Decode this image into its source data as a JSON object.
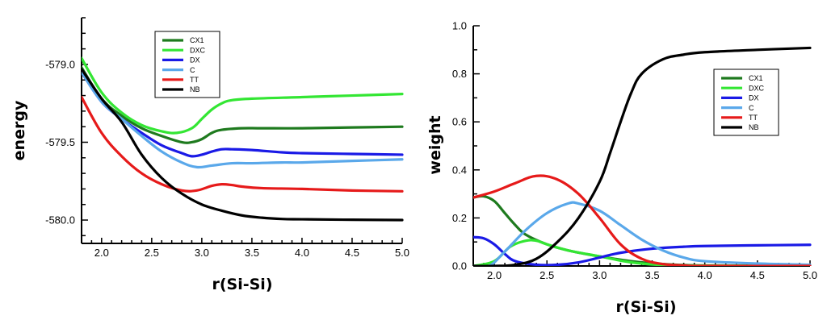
{
  "chart_data": [
    {
      "type": "line",
      "xlabel": "r(Si-Si)",
      "ylabel": "energy",
      "xlim": [
        1.8,
        5.0
      ],
      "ylim": [
        -580.15,
        -578.7
      ],
      "x_ticks": [
        2.0,
        2.5,
        3.0,
        3.5,
        4.0,
        4.5,
        5.0
      ],
      "x_tick_labels": [
        "2.0",
        "2.5",
        "3.0",
        "3.5",
        "4.0",
        "4.5",
        "5.0"
      ],
      "y_ticks": [
        -579.0,
        -579.5,
        -580.0
      ],
      "y_tick_labels": [
        "-579.0",
        "-579.5",
        "-580.0"
      ],
      "legend": {
        "placement": "top-center",
        "entries": [
          "CX1",
          "DXC",
          "DX",
          "C",
          "TT",
          "NB"
        ]
      },
      "series": [
        {
          "name": "CX1",
          "color": "#1e7a1e",
          "x": [
            1.8,
            2.0,
            2.2,
            2.4,
            2.6,
            2.8,
            2.9,
            3.0,
            3.1,
            3.2,
            3.4,
            3.6,
            4.0,
            4.5,
            5.0
          ],
          "y": [
            -579.02,
            -579.22,
            -579.33,
            -579.41,
            -579.46,
            -579.5,
            -579.5,
            -579.48,
            -579.44,
            -579.42,
            -579.41,
            -579.41,
            -579.41,
            -579.405,
            -579.4
          ]
        },
        {
          "name": "DXC",
          "color": "#33e633",
          "x": [
            1.8,
            2.0,
            2.2,
            2.4,
            2.6,
            2.75,
            2.9,
            3.0,
            3.1,
            3.2,
            3.3,
            3.5,
            4.0,
            4.5,
            5.0
          ],
          "y": [
            -578.96,
            -579.18,
            -579.31,
            -579.39,
            -579.43,
            -579.44,
            -579.41,
            -579.35,
            -579.29,
            -579.25,
            -579.23,
            -579.22,
            -579.21,
            -579.2,
            -579.19
          ]
        },
        {
          "name": "DX",
          "color": "#1a1ae6",
          "x": [
            1.8,
            2.0,
            2.2,
            2.4,
            2.6,
            2.8,
            2.9,
            3.0,
            3.1,
            3.2,
            3.3,
            3.5,
            3.8,
            4.0,
            4.5,
            5.0
          ],
          "y": [
            -579.05,
            -579.24,
            -579.35,
            -579.44,
            -579.52,
            -579.57,
            -579.59,
            -579.58,
            -579.56,
            -579.545,
            -579.545,
            -579.55,
            -579.565,
            -579.57,
            -579.575,
            -579.58
          ]
        },
        {
          "name": "C",
          "color": "#5aa8ea",
          "x": [
            1.8,
            2.0,
            2.2,
            2.4,
            2.6,
            2.8,
            2.95,
            3.1,
            3.3,
            3.5,
            3.8,
            4.0,
            4.5,
            5.0
          ],
          "y": [
            -579.05,
            -579.24,
            -579.35,
            -579.46,
            -579.56,
            -579.63,
            -579.66,
            -579.65,
            -579.635,
            -579.635,
            -579.63,
            -579.63,
            -579.62,
            -579.61
          ]
        },
        {
          "name": "TT",
          "color": "#e61a1a",
          "x": [
            1.8,
            2.0,
            2.2,
            2.4,
            2.6,
            2.8,
            2.95,
            3.1,
            3.2,
            3.3,
            3.4,
            3.6,
            4.0,
            4.5,
            5.0
          ],
          "y": [
            -579.21,
            -579.44,
            -579.59,
            -579.7,
            -579.77,
            -579.81,
            -579.81,
            -579.78,
            -579.77,
            -579.775,
            -579.785,
            -579.795,
            -579.8,
            -579.81,
            -579.815
          ]
        },
        {
          "name": "NB",
          "color": "#000000",
          "x": [
            1.8,
            2.0,
            2.2,
            2.4,
            2.6,
            2.8,
            3.0,
            3.2,
            3.4,
            3.6,
            3.8,
            4.0,
            4.5,
            5.0
          ],
          "y": [
            -579.03,
            -579.22,
            -579.37,
            -579.58,
            -579.73,
            -579.83,
            -579.9,
            -579.94,
            -579.97,
            -579.985,
            -579.993,
            -579.995,
            -579.998,
            -580.0
          ]
        }
      ]
    },
    {
      "type": "line",
      "xlabel": "r(Si-Si)",
      "ylabel": "weight",
      "xlim": [
        1.8,
        5.0
      ],
      "ylim": [
        0.0,
        1.0
      ],
      "x_ticks": [
        2.0,
        2.5,
        3.0,
        3.5,
        4.0,
        4.5,
        5.0
      ],
      "x_tick_labels": [
        "2.0",
        "2.5",
        "3.0",
        "3.5",
        "4.0",
        "4.5",
        "5.0"
      ],
      "y_ticks": [
        0.0,
        0.2,
        0.4,
        0.6,
        0.8,
        1.0
      ],
      "y_tick_labels": [
        "0.0",
        "0.2",
        "0.4",
        "0.6",
        "0.8",
        "1.0"
      ],
      "legend": {
        "placement": "right",
        "entries": [
          "CX1",
          "DXC",
          "DX",
          "C",
          "TT",
          "NB"
        ]
      },
      "series": [
        {
          "name": "CX1",
          "color": "#1e7a1e",
          "x": [
            1.8,
            1.9,
            2.0,
            2.1,
            2.2,
            2.3,
            2.5,
            2.7,
            3.0,
            3.3,
            3.6,
            4.0,
            5.0
          ],
          "y": [
            0.285,
            0.29,
            0.27,
            0.22,
            0.17,
            0.13,
            0.09,
            0.065,
            0.04,
            0.02,
            0.008,
            0.002,
            0.0
          ]
        },
        {
          "name": "DXC",
          "color": "#33e633",
          "x": [
            1.8,
            2.0,
            2.15,
            2.3,
            2.4,
            2.5,
            2.7,
            3.0,
            3.3,
            3.6,
            4.0,
            5.0
          ],
          "y": [
            0.0,
            0.02,
            0.08,
            0.105,
            0.105,
            0.09,
            0.065,
            0.04,
            0.015,
            0.004,
            0.001,
            0.0
          ]
        },
        {
          "name": "DX",
          "color": "#1a1ae6",
          "x": [
            1.8,
            1.9,
            2.0,
            2.1,
            2.2,
            2.4,
            2.6,
            2.8,
            3.0,
            3.2,
            3.5,
            3.8,
            4.0,
            4.5,
            5.0
          ],
          "y": [
            0.12,
            0.115,
            0.09,
            0.05,
            0.02,
            0.005,
            0.005,
            0.015,
            0.035,
            0.055,
            0.072,
            0.08,
            0.083,
            0.086,
            0.088
          ]
        },
        {
          "name": "C",
          "color": "#5aa8ea",
          "x": [
            1.8,
            1.95,
            2.1,
            2.3,
            2.5,
            2.7,
            2.8,
            3.0,
            3.2,
            3.4,
            3.6,
            3.8,
            4.0,
            4.5,
            5.0
          ],
          "y": [
            0.0,
            0.0,
            0.06,
            0.15,
            0.22,
            0.26,
            0.26,
            0.23,
            0.17,
            0.11,
            0.065,
            0.035,
            0.02,
            0.01,
            0.005
          ]
        },
        {
          "name": "TT",
          "color": "#e61a1a",
          "x": [
            1.8,
            2.0,
            2.2,
            2.4,
            2.6,
            2.8,
            3.0,
            3.2,
            3.4,
            3.6,
            3.8,
            4.0,
            5.0
          ],
          "y": [
            0.285,
            0.31,
            0.345,
            0.375,
            0.36,
            0.3,
            0.2,
            0.09,
            0.03,
            0.008,
            0.002,
            0.0,
            0.0
          ]
        },
        {
          "name": "NB",
          "color": "#000000",
          "x": [
            1.8,
            2.0,
            2.2,
            2.4,
            2.6,
            2.8,
            3.0,
            3.1,
            3.2,
            3.3,
            3.4,
            3.6,
            3.8,
            4.0,
            4.5,
            5.0
          ],
          "y": [
            0.0,
            0.0,
            0.005,
            0.03,
            0.1,
            0.2,
            0.35,
            0.47,
            0.6,
            0.72,
            0.8,
            0.86,
            0.88,
            0.89,
            0.9,
            0.908
          ]
        }
      ]
    }
  ]
}
